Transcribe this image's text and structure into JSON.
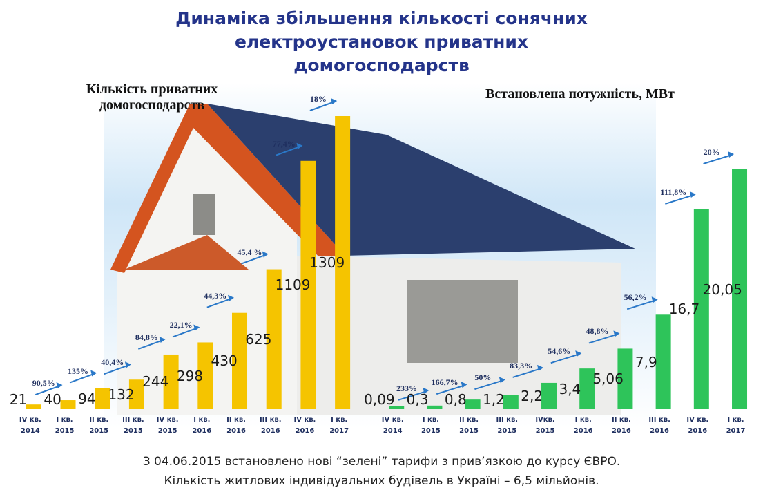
{
  "title": "Динаміка збільшення кількості сонячних електроустановок приватних домогосподарств",
  "footer": [
    "З 04.06.2015 встановлено нові “зелені” тарифи з прив’язкою до курсу ЄВРО.",
    "Кількість житлових індивідуальних будівель в Україні – 6,5 мільйонів."
  ],
  "chart_data": [
    {
      "type": "bar",
      "title": "Кількість приватних\nдомогосподарств",
      "color": "#f5c400",
      "categories": [
        "IV кв.\n2014",
        "I кв.\n2015",
        "II кв.\n2015",
        "III кв.\n2015",
        "IV кв.\n2015",
        "I кв.\n2016",
        "II кв.\n2016",
        "III кв.\n2016",
        "IV кв.\n2016",
        "I кв.\n2017"
      ],
      "values": [
        21,
        40,
        94,
        132,
        244,
        298,
        430,
        625,
        1109,
        1309
      ],
      "annotations": [
        "90,5%",
        "135%",
        "40,4%",
        "84,8%",
        "22,1%",
        "44,3%",
        "45,4 %",
        "77,4%",
        "18%"
      ]
    },
    {
      "type": "bar",
      "title": "Встановлена потужність, МВт",
      "color": "#2ec45a",
      "categories": [
        "IV кв.\n2014",
        "I кв.\n2015",
        "II кв.\n2015",
        "III кв.\n2015",
        "IVкв.\n2015",
        "I кв.\n2016",
        "II кв.\n2016",
        "III кв.\n2016",
        "IV кв.\n2016",
        "I кв.\n2017"
      ],
      "values": [
        0.09,
        0.3,
        0.8,
        1.2,
        2.2,
        3.4,
        5.06,
        7.9,
        16.7,
        20.05
      ],
      "value_labels": [
        "0,09",
        "0,3",
        "0,8",
        "1,2",
        "2,2",
        "3,4",
        "5,06",
        "7,9",
        "16,7",
        "20,05"
      ],
      "annotations": [
        "233%",
        "166,7%",
        "50%",
        "83,3%",
        "54,6%",
        "48,8%",
        "56,2%",
        "111,8%",
        "20%"
      ]
    }
  ]
}
